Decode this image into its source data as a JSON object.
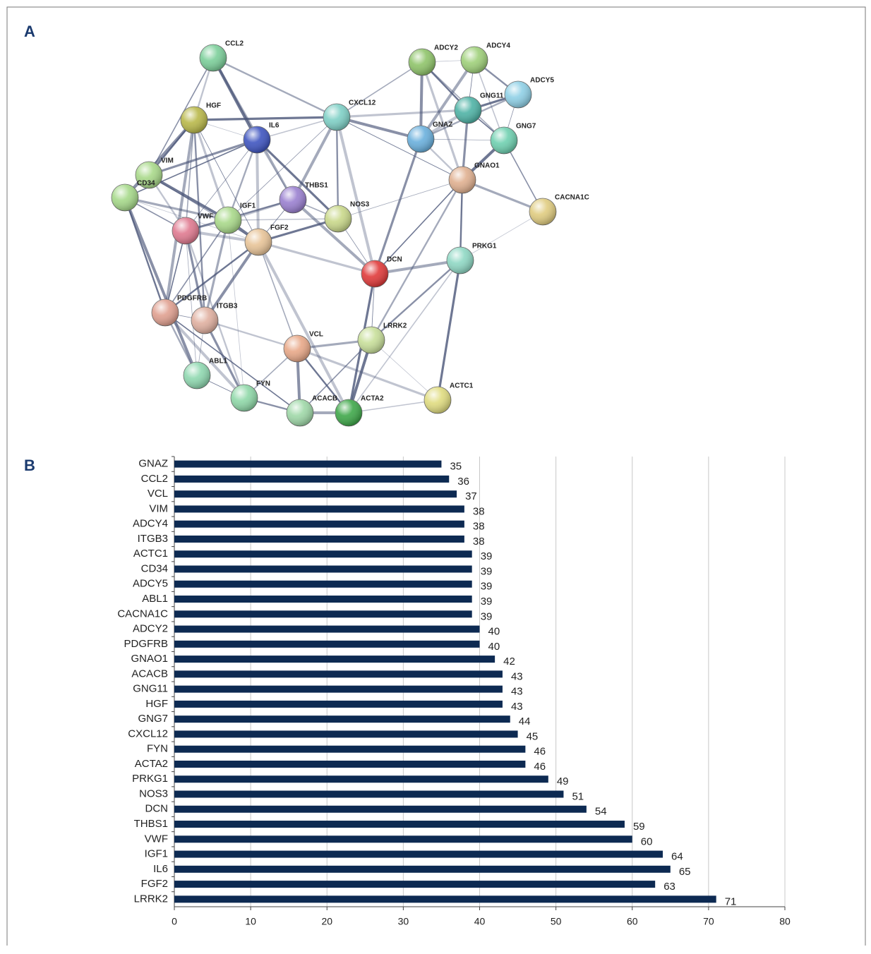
{
  "panel_a": {
    "letter": "A",
    "nodes": [
      "CCL2",
      "ADCY2",
      "ADCY4",
      "ADCY5",
      "GNG11",
      "CXCL12",
      "HGF",
      "IL6",
      "GNAZ",
      "GNG7",
      "VIM",
      "CD34",
      "THBS1",
      "GNAO1",
      "CACNA1C",
      "NOS3",
      "VWF",
      "IGF1",
      "FGF2",
      "DCN",
      "PRKG1",
      "PDGFRB",
      "ITGB3",
      "LRRK2",
      "VCL",
      "ABL1",
      "FYN",
      "ACACB",
      "ACTA2",
      "ACTC1"
    ]
  },
  "panel_b_letter": "B",
  "chart_data": {
    "type": "bar",
    "orientation": "horizontal",
    "categories": [
      "GNAZ",
      "CCL2",
      "VCL",
      "VIM",
      "ADCY4",
      "ITGB3",
      "ACTC1",
      "CD34",
      "ADCY5",
      "ABL1",
      "CACNA1C",
      "ADCY2",
      "PDGFRB",
      "GNAO1",
      "ACACB",
      "GNG11",
      "HGF",
      "GNG7",
      "CXCL12",
      "FYN",
      "ACTA2",
      "PRKG1",
      "NOS3",
      "DCN",
      "THBS1",
      "VWF",
      "IGF1",
      "IL6",
      "FGF2",
      "LRRK2"
    ],
    "values": [
      35,
      36,
      37,
      38,
      38,
      38,
      39,
      39,
      39,
      39,
      39,
      40,
      40,
      42,
      43,
      43,
      43,
      44,
      45,
      46,
      46,
      49,
      51,
      54,
      59,
      60,
      64,
      65,
      63,
      71
    ],
    "color": "#0d2a52",
    "xlim": [
      0,
      80
    ],
    "xticks": [
      0,
      10,
      20,
      30,
      40,
      50,
      60,
      70,
      80
    ],
    "grid": true
  }
}
